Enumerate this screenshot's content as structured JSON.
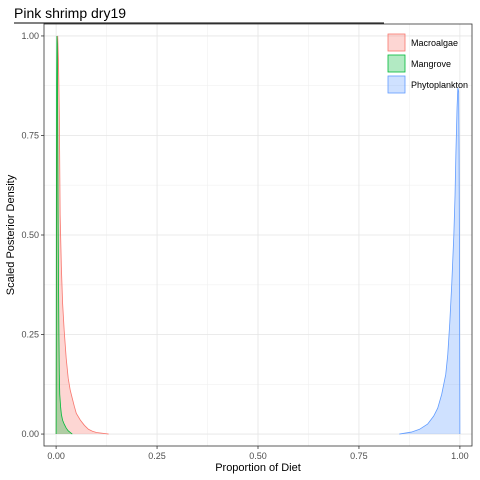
{
  "chart_data": {
    "type": "area",
    "title": "Pink shrimp dry19",
    "xlabel": "Proportion of Diet",
    "ylabel": "Scaled Posterior Density",
    "xlim": [
      -0.03,
      1.03
    ],
    "ylim": [
      -0.03,
      1.03
    ],
    "x_ticks": [
      0.0,
      0.25,
      0.5,
      0.75,
      1.0
    ],
    "x_tick_labels": [
      "0.00",
      "0.25",
      "0.50",
      "0.75",
      "1.00"
    ],
    "y_ticks": [
      0.0,
      0.25,
      0.5,
      0.75,
      1.0
    ],
    "y_tick_labels": [
      "0.00",
      "0.25",
      "0.50",
      "0.75",
      "1.00"
    ],
    "grid": true,
    "legend_position": "top-right",
    "series": [
      {
        "name": "Macroalgae",
        "fill": "#F8766D",
        "points": [
          [
            0.0,
            0.0
          ],
          [
            0.002,
            0.7
          ],
          [
            0.004,
            1.0
          ],
          [
            0.006,
            0.93
          ],
          [
            0.008,
            0.8
          ],
          [
            0.01,
            0.55
          ],
          [
            0.013,
            0.42
          ],
          [
            0.016,
            0.33
          ],
          [
            0.02,
            0.26
          ],
          [
            0.025,
            0.19
          ],
          [
            0.03,
            0.14
          ],
          [
            0.035,
            0.11
          ],
          [
            0.04,
            0.09
          ],
          [
            0.045,
            0.07
          ],
          [
            0.05,
            0.052
          ],
          [
            0.06,
            0.035
          ],
          [
            0.07,
            0.022
          ],
          [
            0.08,
            0.012
          ],
          [
            0.09,
            0.007
          ],
          [
            0.1,
            0.004
          ],
          [
            0.115,
            0.002
          ],
          [
            0.13,
            0.0
          ]
        ]
      },
      {
        "name": "Mangrove",
        "fill": "#00BA38",
        "points": [
          [
            0.0,
            0.0
          ],
          [
            0.001,
            0.85
          ],
          [
            0.002,
            1.0
          ],
          [
            0.003,
            0.98
          ],
          [
            0.004,
            0.78
          ],
          [
            0.005,
            0.55
          ],
          [
            0.006,
            0.38
          ],
          [
            0.007,
            0.25
          ],
          [
            0.008,
            0.15
          ],
          [
            0.009,
            0.1
          ],
          [
            0.011,
            0.07
          ],
          [
            0.013,
            0.05
          ],
          [
            0.016,
            0.035
          ],
          [
            0.02,
            0.025
          ],
          [
            0.025,
            0.015
          ],
          [
            0.03,
            0.008
          ],
          [
            0.035,
            0.004
          ],
          [
            0.04,
            0.0
          ]
        ]
      },
      {
        "name": "Phytoplankton",
        "fill": "#619CFF",
        "points": [
          [
            0.85,
            0.0
          ],
          [
            0.88,
            0.005
          ],
          [
            0.9,
            0.012
          ],
          [
            0.92,
            0.025
          ],
          [
            0.935,
            0.045
          ],
          [
            0.945,
            0.065
          ],
          [
            0.955,
            0.1
          ],
          [
            0.965,
            0.15
          ],
          [
            0.97,
            0.2
          ],
          [
            0.975,
            0.28
          ],
          [
            0.98,
            0.38
          ],
          [
            0.985,
            0.5
          ],
          [
            0.988,
            0.6
          ],
          [
            0.99,
            0.7
          ],
          [
            0.993,
            0.82
          ],
          [
            0.995,
            0.87
          ],
          [
            0.997,
            0.86
          ],
          [
            0.998,
            0.7
          ],
          [
            0.999,
            0.45
          ],
          [
            1.0,
            0.0
          ]
        ]
      }
    ]
  }
}
